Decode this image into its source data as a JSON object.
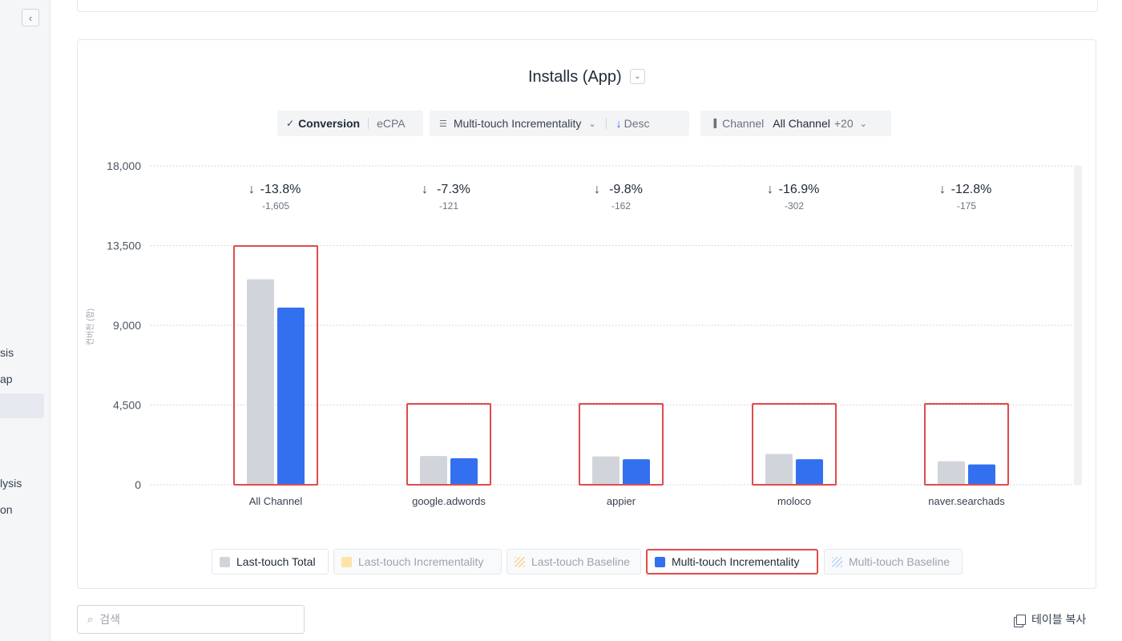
{
  "sidebar": {
    "items": [
      "sis",
      "ap",
      "lysis",
      "on"
    ]
  },
  "chart_header": {
    "title": "Installs (App)"
  },
  "controls": {
    "metric_active": "Conversion",
    "metric_other": "eCPA",
    "sort_field": "Multi-touch Incrementality",
    "sort_order": "Desc",
    "filter_label": "Channel",
    "filter_value": "All Channel",
    "filter_extra": "+20"
  },
  "chart_data": {
    "type": "bar",
    "ylabel": "컨버전 (합)",
    "ylim": [
      0,
      18000
    ],
    "yticks": [
      "0",
      "4,500",
      "9,000",
      "13,500",
      "18,000"
    ],
    "categories": [
      "All Channel",
      "google.adwords",
      "appier",
      "moloco",
      "naver.searchads"
    ],
    "series": [
      {
        "name": "Last-touch Total",
        "color": "#d1d5db",
        "values": [
          11600,
          1620,
          1600,
          1740,
          1330
        ]
      },
      {
        "name": "Multi-touch Incrementality",
        "color": "#3370f0",
        "values": [
          10000,
          1500,
          1440,
          1440,
          1150
        ]
      }
    ],
    "annotations": [
      {
        "pct": "-13.8%",
        "diff": "-1,605"
      },
      {
        "pct": "-7.3%",
        "diff": "-121"
      },
      {
        "pct": "-9.8%",
        "diff": "-162"
      },
      {
        "pct": "-16.9%",
        "diff": "-302"
      },
      {
        "pct": "-12.8%",
        "diff": "-175"
      }
    ]
  },
  "legend": [
    {
      "label": "Last-touch Total",
      "color": "#d1d5db",
      "state": "active"
    },
    {
      "label": "Last-touch Incrementality",
      "color": "#fde3a7",
      "state": "faded"
    },
    {
      "label": "Last-touch Baseline",
      "color": "#f5d9a8",
      "state": "faded"
    },
    {
      "label": "Multi-touch Incrementality",
      "color": "#3370f0",
      "state": "selected"
    },
    {
      "label": "Multi-touch Baseline",
      "color": "#c7d8fb",
      "state": "faded"
    }
  ],
  "search": {
    "placeholder": "검색"
  },
  "table_copy_label": "테이블 복사"
}
